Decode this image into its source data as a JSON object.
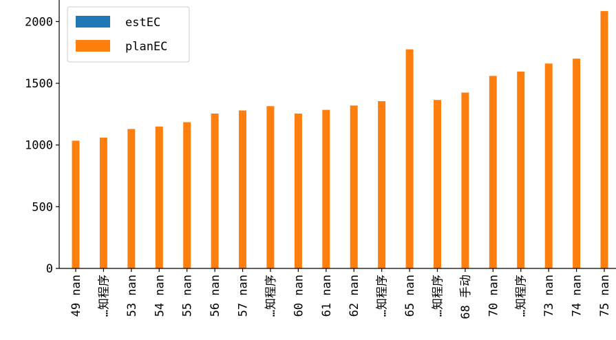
{
  "chart_data": {
    "type": "bar",
    "categories": [
      "49 nan",
      "…知程序",
      "53 nan",
      "54 nan",
      "55 nan",
      "56 nan",
      "57 nan",
      "…知程序",
      "60 nan",
      "61 nan",
      "62 nan",
      "…知程序",
      "65 nan",
      "…知程序",
      "68 手动",
      "70 nan",
      "…知程序",
      "73 nan",
      "74 nan",
      "75 nan"
    ],
    "series": [
      {
        "name": "estEC",
        "color": "#1f77b4",
        "values": [
          0,
          0,
          0,
          0,
          0,
          0,
          0,
          0,
          0,
          0,
          0,
          0,
          0,
          0,
          0,
          0,
          0,
          0,
          0,
          0
        ]
      },
      {
        "name": "planEC",
        "color": "#ff7f0e",
        "values": [
          1035,
          1060,
          1130,
          1150,
          1185,
          1255,
          1280,
          1315,
          1255,
          1285,
          1320,
          1355,
          1775,
          1365,
          1425,
          1560,
          1595,
          1660,
          1700,
          2085
        ]
      }
    ],
    "yticks": [
      "0",
      "500",
      "1000",
      "1500",
      "2000"
    ],
    "ylim": [
      0,
      2175
    ],
    "legend": "top-left",
    "grid": false,
    "title": "",
    "xlabel": "",
    "ylabel": ""
  }
}
